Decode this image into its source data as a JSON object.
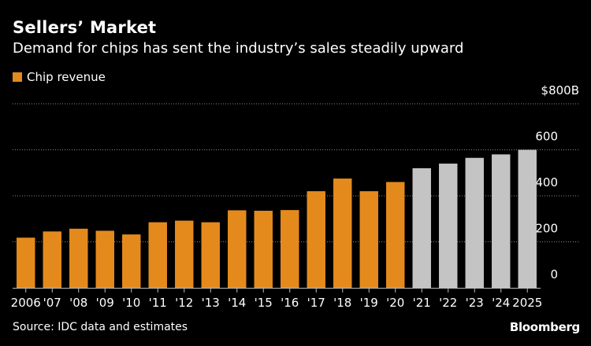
{
  "header": {
    "title": "Sellers’ Market",
    "subtitle": "Demand for chips has sent the industry’s sales steadily upward"
  },
  "footer": {
    "source": "Source: IDC data and estimates",
    "brand": "Bloomberg"
  },
  "colors": {
    "actual": "#e48a1c",
    "estimate": "#c4c4c4",
    "grid": "#8a8a8a",
    "axis": "#bbbbbb"
  },
  "chart_data": {
    "type": "bar",
    "title": "Sellers’ Market",
    "subtitle": "Demand for chips has sent the industry’s sales steadily upward",
    "legend": [
      {
        "name": "Chip revenue",
        "color": "#e48a1c"
      }
    ],
    "legend_position": "top-left",
    "categories": [
      "2006",
      "'07",
      "'08",
      "'09",
      "'10",
      "'11",
      "'12",
      "'13",
      "'14",
      "'15",
      "'16",
      "'17",
      "'18",
      "'19",
      "'20",
      "'21",
      "'22",
      "'23",
      "'24",
      "2025"
    ],
    "values": [
      218,
      245,
      257,
      248,
      232,
      285,
      292,
      285,
      337,
      335,
      338,
      420,
      475,
      420,
      460,
      520,
      540,
      565,
      580,
      600
    ],
    "estimate_from_index": 15,
    "y_ticks": [
      0,
      200,
      400,
      600,
      800
    ],
    "y_tick_labels": [
      "0",
      "200",
      "400",
      "600",
      "$800B"
    ],
    "ylim": [
      0,
      800
    ],
    "grid": true,
    "xlabel": "",
    "ylabel": ""
  }
}
